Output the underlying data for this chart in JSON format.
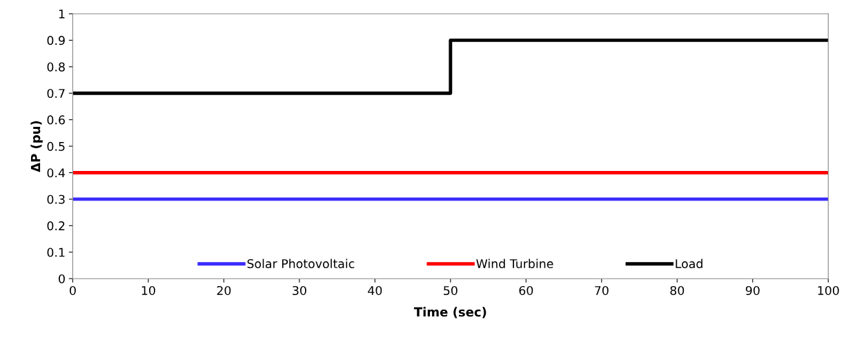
{
  "chart_data": {
    "type": "line",
    "xlabel": "Time (sec)",
    "ylabel": "ΔP (pu)",
    "xlim": [
      0,
      100
    ],
    "xticks": [
      0,
      10,
      20,
      30,
      40,
      50,
      60,
      70,
      80,
      90,
      100
    ],
    "ylim": [
      0,
      1
    ],
    "yticks": [
      0,
      0.1,
      0.2,
      0.3,
      0.4,
      0.5,
      0.6,
      0.7,
      0.8,
      0.9,
      1
    ],
    "grid": false,
    "legend": "bottom",
    "marker": "none",
    "line_style": "solid",
    "series": [
      {
        "name": "Solar Photovoltaic",
        "color": "#3b2bff",
        "x": [
          0,
          100
        ],
        "values": [
          0.3,
          0.3
        ]
      },
      {
        "name": "Wind Turbine",
        "color": "#ff0000",
        "x": [
          0,
          100
        ],
        "values": [
          0.4,
          0.4
        ]
      },
      {
        "name": "Load",
        "color": "#000000",
        "type": "step",
        "x": [
          0,
          50,
          100
        ],
        "values": [
          0.7,
          0.9,
          0.9
        ]
      }
    ]
  }
}
